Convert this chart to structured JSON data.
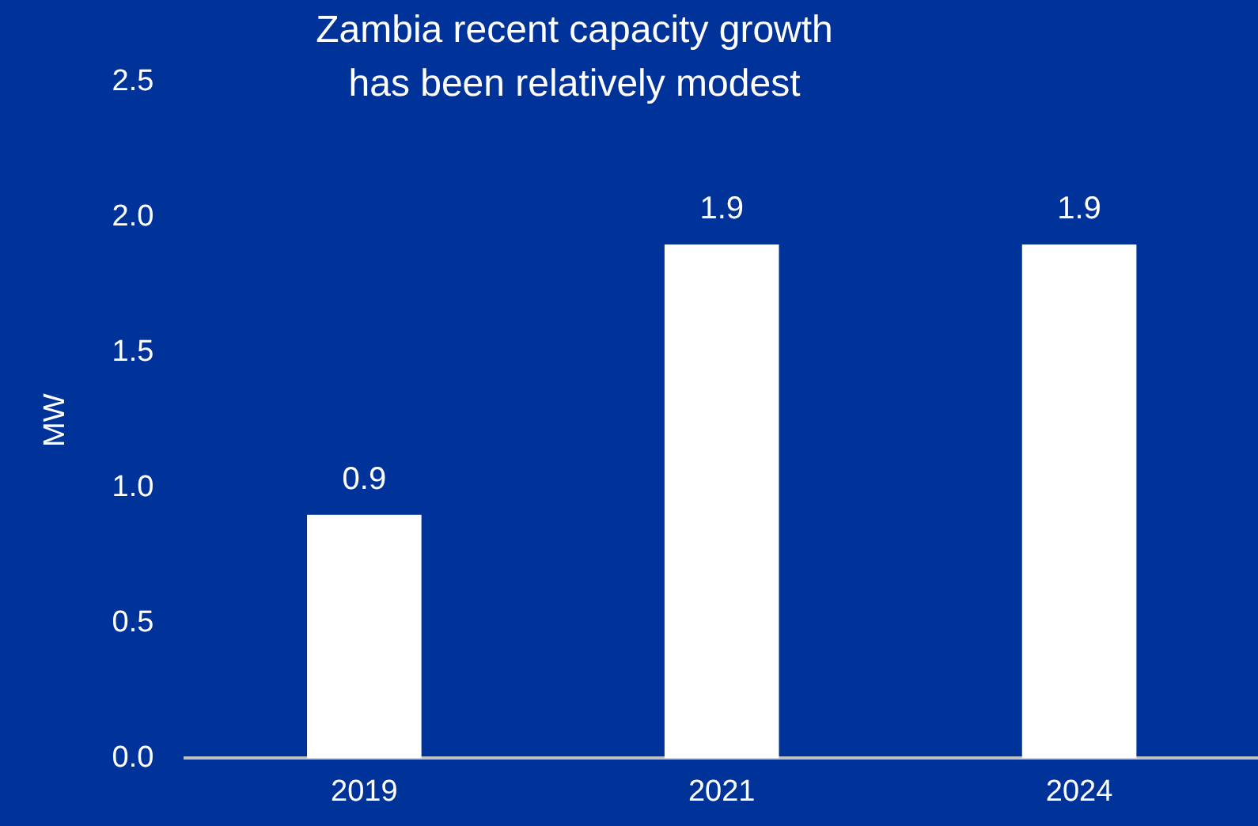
{
  "chart_data": {
    "type": "bar",
    "title": "Zambia recent capacity growth\nhas been relatively modest",
    "ylabel": "MW",
    "categories": [
      "2019",
      "2021",
      "2024"
    ],
    "values": [
      0.9,
      1.9,
      1.9
    ],
    "color": "#ffffff",
    "ylim": [
      0,
      2.5
    ],
    "yticks": [
      {
        "value": 0,
        "label": "0.0"
      },
      0.5,
      {
        "value": 1,
        "label": "1.0"
      },
      1.5,
      {
        "value": 2,
        "label": "2.0"
      },
      2.5
    ],
    "data_labels": true,
    "grid": false,
    "legend": false
  }
}
